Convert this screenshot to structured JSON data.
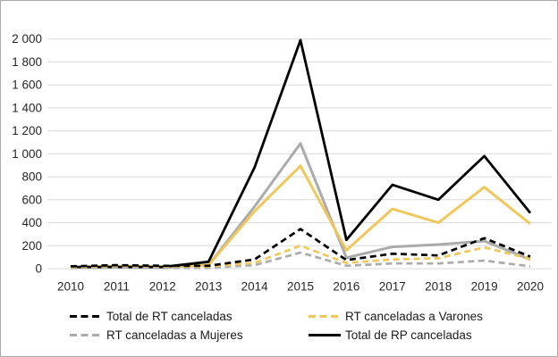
{
  "chart_data": {
    "type": "line",
    "title": "",
    "xlabel": "",
    "ylabel": "",
    "ylim": [
      0,
      2000
    ],
    "y_tick_step": 200,
    "grid": "horizontal",
    "categories": [
      2010,
      2011,
      2012,
      2013,
      2014,
      2015,
      2016,
      2017,
      2018,
      2019,
      2020
    ],
    "x_tick_labels": [
      "2010",
      "2011",
      "2012",
      "2013",
      "2014",
      "2015",
      "2016",
      "2017",
      "2018",
      "2019",
      "2020"
    ],
    "y_ticks": [
      "2 000",
      "1 800",
      "1 600",
      "1 400",
      "1 200",
      "1 000",
      "800",
      "600",
      "400",
      "200",
      "0"
    ],
    "series": [
      {
        "name": "Total de RT canceladas",
        "color": "#000000",
        "style": "dashed",
        "width": 2.7,
        "z": 6,
        "in_legend": true,
        "values": [
          20,
          30,
          25,
          25,
          80,
          345,
          75,
          130,
          115,
          265,
          105
        ]
      },
      {
        "name": "RT canceladas a Varones",
        "color": "#efc75a",
        "style": "dashed",
        "width": 2.7,
        "z": 5,
        "in_legend": true,
        "values": [
          15,
          25,
          20,
          18,
          50,
          200,
          50,
          80,
          90,
          185,
          85
        ]
      },
      {
        "name": "RT canceladas a Mujeres",
        "color": "#ababab",
        "style": "dashed",
        "width": 2.7,
        "z": 4,
        "in_legend": true,
        "values": [
          5,
          10,
          8,
          8,
          30,
          140,
          25,
          45,
          45,
          70,
          20
        ]
      },
      {
        "name": "Total de RP canceladas",
        "color": "#000000",
        "style": "solid",
        "width": 2.8,
        "z": 3,
        "in_legend": true,
        "values": [
          15,
          15,
          15,
          60,
          880,
          1990,
          250,
          730,
          600,
          980,
          485
        ]
      },
      {
        "name": "unlabeled-solid-gray",
        "color": "#ababab",
        "style": "solid",
        "width": 3,
        "z": 1,
        "in_legend": false,
        "values": [
          10,
          12,
          12,
          30,
          540,
          1090,
          95,
          190,
          210,
          240,
          80
        ]
      },
      {
        "name": "unlabeled-solid-yellow",
        "color": "#efc75a",
        "style": "solid",
        "width": 3,
        "z": 2,
        "in_legend": false,
        "values": [
          12,
          20,
          18,
          30,
          500,
          895,
          160,
          520,
          400,
          710,
          390
        ]
      }
    ],
    "legend": {
      "position": "bottom",
      "entries": [
        {
          "label": "Total de RT canceladas",
          "color": "#000000",
          "dash": true
        },
        {
          "label": "RT canceladas a Varones",
          "color": "#efc75a",
          "dash": true
        },
        {
          "label": "RT canceladas a Mujeres",
          "color": "#ababab",
          "dash": true
        },
        {
          "label": "Total de RP canceladas",
          "color": "#000000",
          "dash": false
        }
      ]
    },
    "colors": {
      "gridline": "#d9d9d9",
      "axis_text": "#262626",
      "frame_border": "#ababab",
      "yellow": "#efc75a",
      "gray": "#ababab",
      "black": "#000000"
    }
  }
}
